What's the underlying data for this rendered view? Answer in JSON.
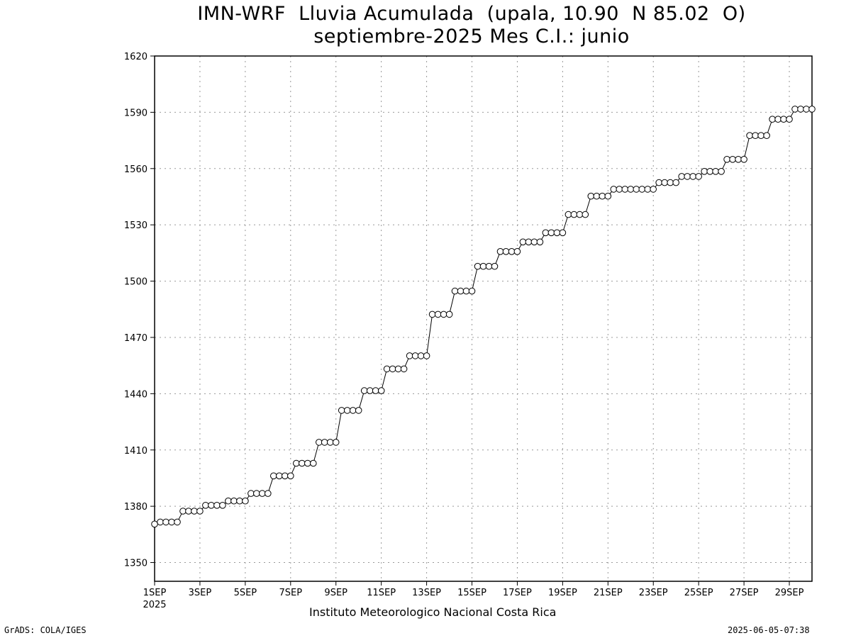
{
  "chart_data": {
    "type": "line",
    "title": "IMN-WRF  Lluvia Acumulada  (upala, 10.90  N 85.02  O)",
    "subtitle": "septiembre-2025 Mes C.I.: junio",
    "xlabel": "",
    "ylabel": "",
    "ylim": [
      1340,
      1620
    ],
    "xlim": [
      0,
      29
    ],
    "y_ticks": [
      1350,
      1380,
      1410,
      1440,
      1470,
      1500,
      1530,
      1560,
      1590,
      1620
    ],
    "x_ticks": [
      {
        "day": 1,
        "label": "1SEP",
        "sublabel": "2025"
      },
      {
        "day": 3,
        "label": "3SEP"
      },
      {
        "day": 5,
        "label": "5SEP"
      },
      {
        "day": 7,
        "label": "7SEP"
      },
      {
        "day": 9,
        "label": "9SEP"
      },
      {
        "day": 11,
        "label": "11SEP"
      },
      {
        "day": 13,
        "label": "13SEP"
      },
      {
        "day": 15,
        "label": "15SEP"
      },
      {
        "day": 17,
        "label": "17SEP"
      },
      {
        "day": 19,
        "label": "19SEP"
      },
      {
        "day": 21,
        "label": "21SEP"
      },
      {
        "day": 23,
        "label": "23SEP"
      },
      {
        "day": 25,
        "label": "25SEP"
      },
      {
        "day": 27,
        "label": "27SEP"
      },
      {
        "day": 29,
        "label": "29SEP"
      }
    ],
    "grid": true,
    "marker": "open-circle",
    "points_per_day": 4,
    "values": [
      1370.5,
      1371.6,
      1371.6,
      1371.6,
      1371.6,
      1377.4,
      1377.4,
      1377.4,
      1377.4,
      1380.5,
      1380.5,
      1380.5,
      1380.5,
      1382.8,
      1382.8,
      1382.8,
      1382.8,
      1386.8,
      1386.8,
      1386.8,
      1386.8,
      1396.2,
      1396.2,
      1396.2,
      1396.2,
      1402.9,
      1402.9,
      1402.9,
      1402.9,
      1414.1,
      1414.1,
      1414.1,
      1414.1,
      1431.1,
      1431.1,
      1431.1,
      1431.1,
      1441.6,
      1441.6,
      1441.6,
      1441.6,
      1453.2,
      1453.2,
      1453.2,
      1453.2,
      1460.2,
      1460.2,
      1460.2,
      1460.2,
      1482.3,
      1482.3,
      1482.3,
      1482.3,
      1494.7,
      1494.7,
      1494.7,
      1494.7,
      1507.9,
      1507.9,
      1507.9,
      1507.9,
      1515.8,
      1515.8,
      1515.8,
      1515.8,
      1520.9,
      1520.9,
      1520.9,
      1520.9,
      1525.8,
      1525.8,
      1525.8,
      1525.8,
      1535.5,
      1535.5,
      1535.5,
      1535.5,
      1545.3,
      1545.3,
      1545.3,
      1545.3,
      1549.0,
      1549.0,
      1549.0,
      1549.0,
      1549.0,
      1549.0,
      1549.0,
      1549.0,
      1552.5,
      1552.5,
      1552.5,
      1552.5,
      1555.8,
      1555.8,
      1555.8,
      1555.8,
      1558.5,
      1558.5,
      1558.5,
      1558.5,
      1564.9,
      1564.9,
      1564.9,
      1564.9,
      1577.6,
      1577.6,
      1577.6,
      1577.6,
      1586.3,
      1586.3,
      1586.3,
      1586.3,
      1591.7,
      1591.7,
      1591.7,
      1591.7
    ]
  },
  "credit": "Instituto Meteorologico Nacional Costa Rica",
  "footer": {
    "source": "GrADS: COLA/IGES",
    "timestamp": "2025-06-05-07:38"
  }
}
